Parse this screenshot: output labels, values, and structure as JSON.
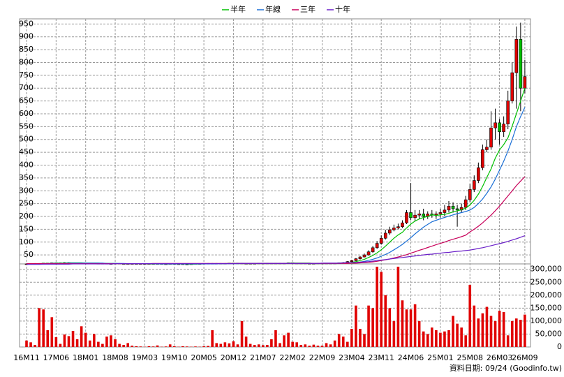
{
  "chart_data": {
    "type": "candlestick",
    "categories": [
      "16M11",
      null,
      null,
      null,
      null,
      null,
      null,
      "17M06",
      null,
      null,
      null,
      null,
      null,
      null,
      "18M01",
      null,
      null,
      null,
      null,
      null,
      null,
      "18M08",
      null,
      null,
      null,
      null,
      null,
      null,
      "19M03",
      null,
      null,
      null,
      null,
      null,
      null,
      "19M10",
      null,
      null,
      null,
      null,
      null,
      null,
      "20M05",
      null,
      null,
      null,
      null,
      null,
      null,
      "20M12",
      null,
      null,
      null,
      null,
      null,
      null,
      "21M07",
      null,
      null,
      null,
      null,
      null,
      null,
      "22M02",
      null,
      null,
      null,
      null,
      null,
      null,
      "22M09",
      null,
      null,
      null,
      null,
      null,
      null,
      "23M04",
      null,
      null,
      null,
      null,
      null,
      null,
      "23M11",
      null,
      null,
      null,
      null,
      null,
      null,
      "24M06",
      null,
      null,
      null,
      null,
      null,
      null,
      "25M01",
      null,
      null,
      null,
      null,
      null,
      null,
      "25M08",
      null,
      null,
      null,
      null,
      null,
      null,
      "26M03",
      null,
      null,
      null,
      null,
      null,
      "26M09"
    ],
    "open": [
      15,
      15,
      16,
      17,
      17,
      18,
      18,
      19,
      18,
      19,
      20,
      19,
      18,
      19,
      18,
      17,
      18,
      17,
      16,
      17,
      16,
      16,
      17,
      16,
      15,
      16,
      16,
      15,
      16,
      15,
      16,
      15,
      16,
      15,
      15,
      16,
      15,
      15,
      14,
      13,
      15,
      16,
      16,
      17,
      17,
      16,
      17,
      16,
      17,
      18,
      17,
      18,
      17,
      16,
      17,
      17,
      18,
      17,
      18,
      17,
      18,
      17,
      18,
      19,
      18,
      17,
      18,
      17,
      16,
      17,
      18,
      17,
      18,
      17,
      18,
      19,
      20,
      24,
      28,
      35,
      42,
      50,
      62,
      78,
      95,
      115,
      135,
      148,
      155,
      160,
      175,
      215,
      195,
      205,
      210,
      200,
      210,
      205,
      210,
      215,
      225,
      240,
      230,
      225,
      235,
      265,
      305,
      340,
      390,
      460,
      470,
      545,
      565,
      530,
      560,
      650,
      760,
      890,
      700
    ],
    "high": [
      16,
      17,
      18,
      18,
      19,
      19,
      20,
      20,
      20,
      21,
      21,
      20,
      20,
      20,
      19,
      19,
      19,
      18,
      18,
      18,
      17,
      18,
      18,
      17,
      17,
      17,
      17,
      17,
      17,
      17,
      17,
      17,
      17,
      16,
      17,
      17,
      16,
      16,
      15,
      16,
      17,
      17,
      18,
      18,
      18,
      18,
      18,
      18,
      19,
      19,
      19,
      19,
      18,
      18,
      18,
      19,
      19,
      19,
      19,
      19,
      19,
      19,
      20,
      20,
      19,
      19,
      19,
      18,
      18,
      19,
      19,
      19,
      19,
      19,
      20,
      22,
      26,
      31,
      38,
      46,
      55,
      68,
      85,
      104,
      126,
      148,
      160,
      168,
      172,
      185,
      225,
      330,
      225,
      225,
      230,
      220,
      225,
      220,
      230,
      245,
      260,
      255,
      245,
      250,
      280,
      325,
      360,
      410,
      480,
      500,
      610,
      620,
      580,
      590,
      690,
      800,
      940,
      955,
      810
    ],
    "low": [
      14,
      14,
      15,
      16,
      16,
      17,
      17,
      17,
      17,
      18,
      18,
      17,
      17,
      17,
      16,
      16,
      16,
      15,
      15,
      15,
      15,
      15,
      15,
      14,
      14,
      15,
      14,
      14,
      14,
      14,
      14,
      14,
      14,
      14,
      14,
      14,
      14,
      13,
      12,
      12,
      14,
      15,
      15,
      16,
      15,
      15,
      15,
      15,
      16,
      16,
      16,
      16,
      15,
      15,
      16,
      16,
      16,
      16,
      16,
      16,
      16,
      16,
      17,
      17,
      16,
      16,
      16,
      15,
      15,
      16,
      16,
      16,
      16,
      16,
      17,
      18,
      19,
      22,
      26,
      32,
      40,
      47,
      58,
      74,
      90,
      110,
      128,
      142,
      150,
      155,
      170,
      185,
      180,
      190,
      185,
      190,
      195,
      190,
      195,
      200,
      215,
      215,
      160,
      215,
      225,
      255,
      295,
      330,
      380,
      450,
      460,
      500,
      480,
      510,
      540,
      640,
      620,
      610,
      680
    ],
    "close": [
      15,
      16,
      17,
      17,
      18,
      18,
      19,
      18,
      19,
      20,
      19,
      18,
      19,
      18,
      17,
      18,
      17,
      16,
      17,
      16,
      16,
      17,
      16,
      15,
      16,
      16,
      15,
      16,
      15,
      16,
      15,
      16,
      15,
      15,
      16,
      15,
      15,
      14,
      13,
      15,
      16,
      16,
      17,
      17,
      16,
      17,
      16,
      17,
      18,
      17,
      18,
      17,
      16,
      17,
      17,
      18,
      17,
      18,
      17,
      18,
      17,
      18,
      19,
      18,
      17,
      18,
      17,
      16,
      17,
      18,
      17,
      18,
      17,
      18,
      19,
      20,
      24,
      28,
      35,
      42,
      50,
      62,
      78,
      95,
      115,
      135,
      148,
      155,
      160,
      175,
      215,
      195,
      205,
      210,
      200,
      210,
      205,
      210,
      215,
      225,
      240,
      230,
      225,
      235,
      265,
      305,
      340,
      390,
      460,
      470,
      545,
      565,
      530,
      560,
      650,
      760,
      890,
      700,
      745
    ],
    "up_color": "#e00000",
    "down_color": "#00c000",
    "ylim": [
      15,
      970
    ],
    "yticks": [
      50,
      100,
      150,
      200,
      250,
      300,
      350,
      400,
      450,
      500,
      550,
      600,
      650,
      700,
      750,
      800,
      850,
      900,
      950
    ],
    "grid": true,
    "series": [
      {
        "name": "半年",
        "color": "#00c000",
        "values": [
          15,
          15,
          16,
          16,
          17,
          17,
          17,
          18,
          18,
          18,
          19,
          19,
          19,
          19,
          18,
          18,
          18,
          18,
          17,
          17,
          17,
          17,
          16,
          16,
          16,
          16,
          16,
          16,
          16,
          15,
          15,
          15,
          15,
          15,
          15,
          15,
          15,
          15,
          15,
          14,
          14,
          15,
          15,
          16,
          16,
          16,
          16,
          16,
          17,
          17,
          17,
          17,
          17,
          17,
          17,
          17,
          17,
          17,
          17,
          17,
          17,
          17,
          18,
          18,
          18,
          18,
          18,
          18,
          17,
          17,
          17,
          17,
          17,
          17,
          18,
          18,
          19,
          21,
          24,
          28,
          33,
          40,
          48,
          58,
          70,
          84,
          100,
          115,
          128,
          138,
          155,
          170,
          182,
          190,
          196,
          200,
          206,
          204,
          206,
          208,
          212,
          218,
          222,
          226,
          232,
          245,
          263,
          287,
          317,
          352,
          385,
          427,
          459,
          480,
          506,
          552,
          600,
          650,
          700
        ]
      },
      {
        "name": "年線",
        "color": "#1a6fd6",
        "values": [
          15,
          15,
          15,
          16,
          16,
          16,
          17,
          17,
          17,
          17,
          18,
          18,
          18,
          18,
          18,
          18,
          18,
          18,
          18,
          17,
          17,
          17,
          17,
          17,
          16,
          16,
          16,
          16,
          16,
          16,
          16,
          15,
          15,
          15,
          15,
          15,
          15,
          15,
          15,
          15,
          15,
          15,
          15,
          15,
          15,
          15,
          16,
          16,
          16,
          16,
          16,
          17,
          17,
          17,
          17,
          17,
          17,
          17,
          17,
          17,
          17,
          17,
          17,
          17,
          17,
          17,
          17,
          17,
          17,
          17,
          17,
          17,
          17,
          17,
          17,
          18,
          18,
          19,
          20,
          22,
          25,
          29,
          33,
          38,
          45,
          52,
          60,
          70,
          80,
          91,
          104,
          117,
          132,
          145,
          158,
          169,
          179,
          185,
          191,
          196,
          201,
          206,
          211,
          215,
          219,
          225,
          235,
          250,
          268,
          290,
          315,
          345,
          380,
          415,
          455,
          500,
          550,
          590,
          625
        ]
      },
      {
        "name": "三年",
        "color": "#c8005a",
        "values": [
          16,
          16,
          16,
          16,
          16,
          16,
          16,
          16,
          16,
          16,
          16,
          16,
          16,
          16,
          16,
          16,
          16,
          16,
          16,
          16,
          16,
          16,
          16,
          16,
          16,
          16,
          16,
          16,
          16,
          16,
          17,
          17,
          17,
          17,
          17,
          17,
          17,
          17,
          17,
          17,
          17,
          17,
          17,
          17,
          17,
          17,
          17,
          17,
          17,
          17,
          17,
          17,
          17,
          17,
          17,
          17,
          17,
          17,
          17,
          17,
          17,
          17,
          17,
          17,
          17,
          17,
          17,
          17,
          17,
          17,
          17,
          17,
          17,
          17,
          17,
          17,
          17,
          18,
          18,
          19,
          20,
          21,
          23,
          25,
          28,
          31,
          34,
          38,
          42,
          46,
          51,
          57,
          62,
          68,
          73,
          79,
          84,
          90,
          95,
          100,
          106,
          111,
          116,
          121,
          127,
          140,
          150,
          162,
          175,
          190,
          205,
          222,
          240,
          260,
          280,
          300,
          320,
          338,
          355
        ]
      },
      {
        "name": "十年",
        "color": "#6a1fc8",
        "values": [
          13,
          13,
          13,
          13,
          14,
          14,
          14,
          14,
          14,
          14,
          14,
          15,
          15,
          15,
          15,
          15,
          15,
          15,
          15,
          15,
          15,
          16,
          16,
          16,
          16,
          16,
          16,
          16,
          16,
          16,
          16,
          16,
          16,
          16,
          16,
          16,
          16,
          16,
          16,
          16,
          16,
          16,
          16,
          16,
          16,
          16,
          16,
          16,
          16,
          16,
          17,
          17,
          17,
          17,
          17,
          17,
          17,
          17,
          17,
          17,
          17,
          17,
          17,
          17,
          17,
          17,
          17,
          17,
          17,
          17,
          18,
          18,
          18,
          18,
          18,
          19,
          20,
          20,
          21,
          22,
          23,
          24,
          26,
          28,
          30,
          32,
          34,
          36,
          38,
          40,
          42,
          44,
          46,
          48,
          50,
          52,
          53,
          55,
          57,
          59,
          60,
          62,
          64,
          65,
          67,
          69,
          72,
          75,
          78,
          82,
          86,
          90,
          94,
          98,
          103,
          108,
          113,
          119,
          125
        ]
      }
    ],
    "volume": {
      "color": "#e00000",
      "values": [
        25000,
        18000,
        8000,
        150000,
        145000,
        65000,
        115000,
        38000,
        12000,
        48000,
        42000,
        62000,
        30000,
        80000,
        55000,
        25000,
        50000,
        20000,
        12000,
        40000,
        45000,
        30000,
        12000,
        8000,
        15000,
        5000,
        3000,
        2000,
        1000,
        3000,
        2000,
        6000,
        1000,
        2000,
        10000,
        3000,
        1000,
        3000,
        2000,
        1000,
        2000,
        1000,
        3000,
        4000,
        65000,
        15000,
        12000,
        18000,
        14000,
        22000,
        10000,
        100000,
        40000,
        12000,
        8000,
        10000,
        7000,
        8000,
        30000,
        65000,
        15000,
        45000,
        55000,
        20000,
        18000,
        8000,
        10000,
        5000,
        9000,
        5000,
        5000,
        15000,
        10000,
        25000,
        50000,
        40000,
        20000,
        70000,
        160000,
        70000,
        50000,
        160000,
        150000,
        310000,
        290000,
        200000,
        150000,
        100000,
        310000,
        180000,
        145000,
        145000,
        165000,
        100000,
        60000,
        50000,
        75000,
        65000,
        55000,
        60000,
        65000,
        120000,
        90000,
        75000,
        45000,
        240000,
        160000,
        110000,
        130000,
        155000,
        120000,
        100000,
        140000,
        135000,
        45000,
        100000,
        110000,
        105000,
        125000
      ],
      "ylim": [
        0,
        310000
      ],
      "yticks": [
        0,
        {
          "value": 50000,
          "label": "50,000"
        },
        {
          "value": 100000,
          "label": "100,000"
        },
        {
          "value": 150000,
          "label": "150,000"
        },
        {
          "value": 200000,
          "label": "200,000"
        },
        {
          "value": 250000,
          "label": "250,000"
        },
        {
          "value": 300000,
          "label": "300,000"
        }
      ]
    },
    "footer": "資料日期: 09/24 (Goodinfo.tw)"
  }
}
